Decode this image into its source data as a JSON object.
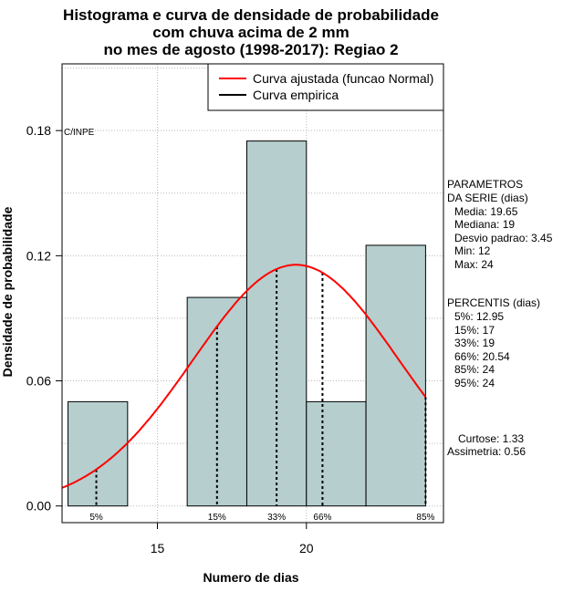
{
  "chart_data": {
    "type": "bar",
    "title_lines": [
      "Histograma e curva de densidade de probabilidade",
      "com chuva acima de 2 mm",
      "no mes de agosto (1998-2017): Regiao 2"
    ],
    "xlabel": "Numero de dias",
    "ylabel": "Densidade de probabilidade",
    "xlim": [
      11.8,
      24.6
    ],
    "ylim": [
      -0.008,
      0.212
    ],
    "xticks": [
      15,
      20
    ],
    "yticks": [
      0.0,
      0.06,
      0.12,
      0.18
    ],
    "ytick_labels": [
      "0.00",
      "0.06",
      "0.12",
      "0.18"
    ],
    "grid": true,
    "bars": [
      {
        "x0": 12,
        "x1": 14,
        "density": 0.05
      },
      {
        "x0": 14,
        "x1": 16,
        "density": 0.0
      },
      {
        "x0": 16,
        "x1": 18,
        "density": 0.1
      },
      {
        "x0": 18,
        "x1": 20,
        "density": 0.175
      },
      {
        "x0": 20,
        "x1": 22,
        "density": 0.05
      },
      {
        "x0": 22,
        "x1": 24,
        "density": 0.125
      }
    ],
    "fitted_curve": {
      "name": "Curva ajustada (funcao Normal)",
      "mean": 19.65,
      "sd": 3.45,
      "color": "#ff0000"
    },
    "empirical_curve": {
      "name": "Curva empirica",
      "color": "#000000"
    },
    "percentile_lines": [
      {
        "label": "5%",
        "x": 12.95
      },
      {
        "label": "15%",
        "x": 17
      },
      {
        "label": "33%",
        "x": 19
      },
      {
        "label": "66%",
        "x": 20.54
      },
      {
        "label": "85%",
        "x": 24
      }
    ],
    "legend_position": "top-right",
    "bar_color": "#b6cece"
  },
  "credit": "C/INPE",
  "side_panel": {
    "params_title_1": "PARAMETROS",
    "params_title_2": "DA SERIE (dias)",
    "media": "Media: 19.65",
    "mediana": "Mediana: 19",
    "desvio": "Desvio padrao: 3.45",
    "min": "Min: 12",
    "max": "Max: 24",
    "pct_title": "PERCENTIS (dias)",
    "p5": "5%: 12.95",
    "p15": "15%: 17",
    "p33": "33%: 19",
    "p66": "66%: 20.54",
    "p85": "85%: 24",
    "p95": "95%: 24",
    "curtose": "Curtose: 1.33",
    "assimetria": "Assimetria: 0.56"
  }
}
